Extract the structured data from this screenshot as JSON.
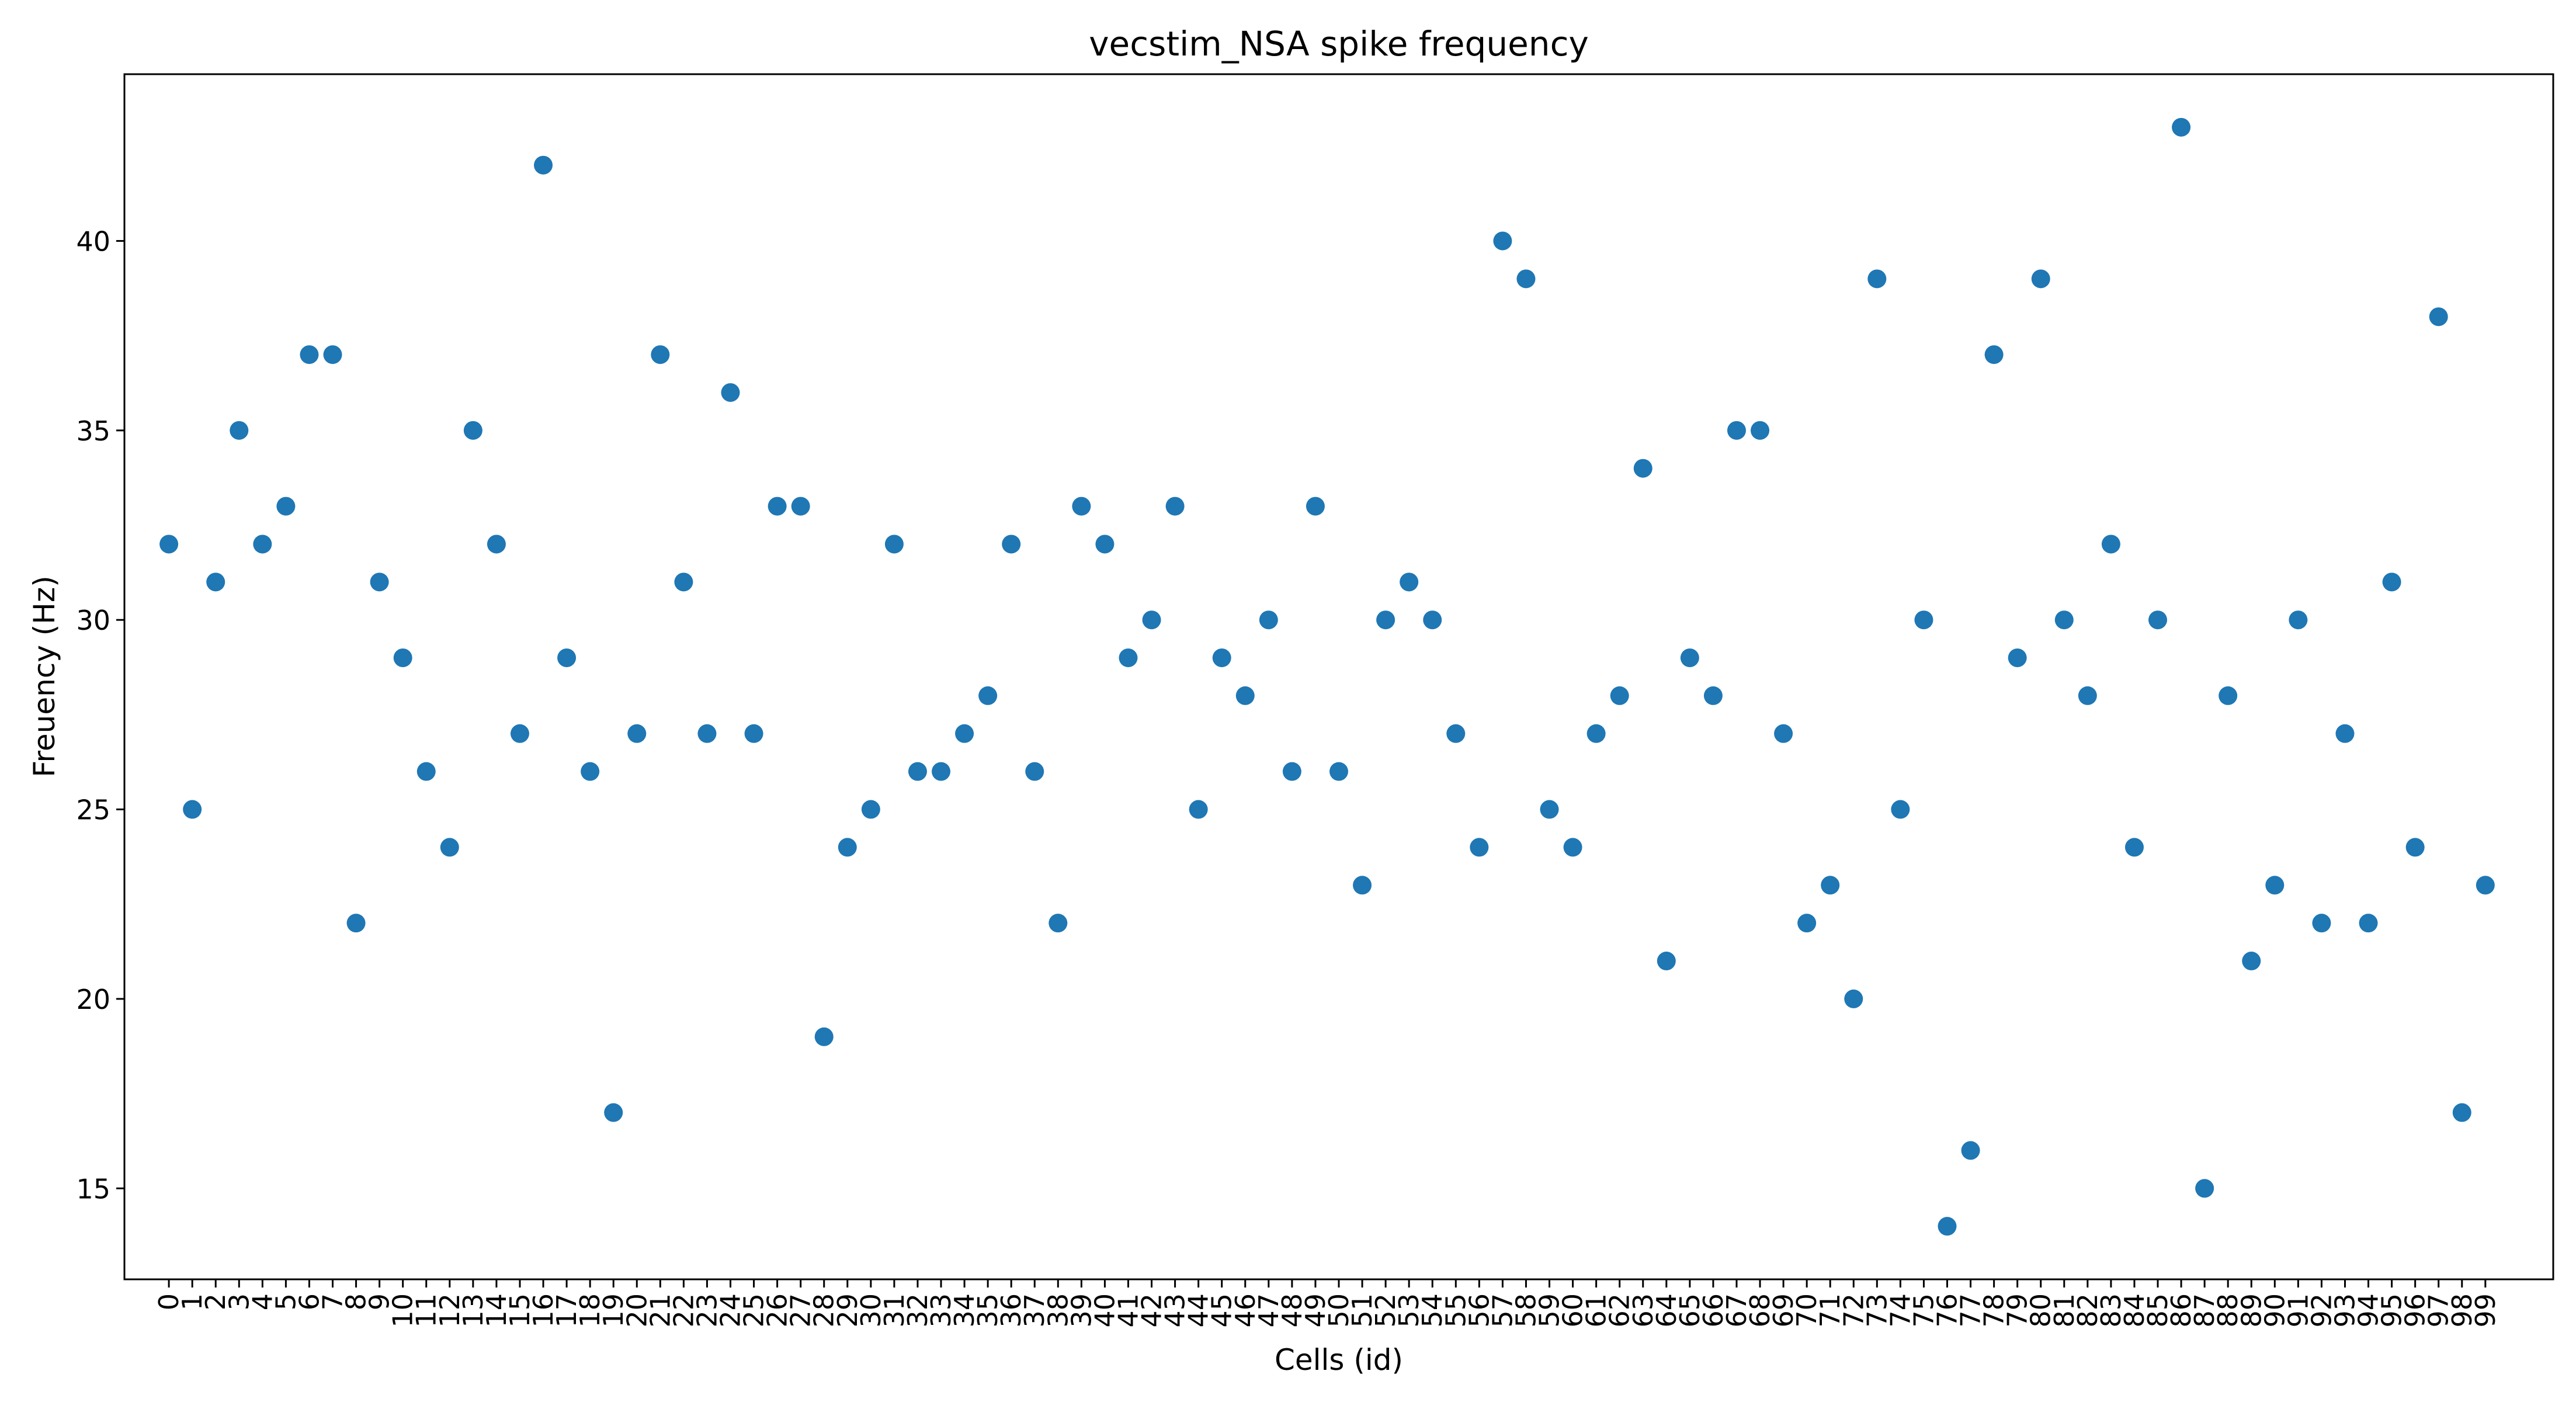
{
  "chart_data": {
    "type": "scatter",
    "title": "vecstim_NSA spike frequency",
    "xlabel": "Cells (id)",
    "ylabel": "Freuency (Hz)",
    "xlim": [
      -1.9,
      101.9
    ],
    "ylim": [
      12.6,
      44.4
    ],
    "yticks": [
      15,
      20,
      25,
      30,
      35,
      40
    ],
    "xticks": [
      0,
      1,
      2,
      3,
      4,
      5,
      6,
      7,
      8,
      9,
      10,
      11,
      12,
      13,
      14,
      15,
      16,
      17,
      18,
      19,
      20,
      21,
      22,
      23,
      24,
      25,
      26,
      27,
      28,
      29,
      30,
      31,
      32,
      33,
      34,
      35,
      36,
      37,
      38,
      39,
      40,
      41,
      42,
      43,
      44,
      45,
      46,
      47,
      48,
      49,
      50,
      51,
      52,
      53,
      54,
      55,
      56,
      57,
      58,
      59,
      60,
      61,
      62,
      63,
      64,
      65,
      66,
      67,
      68,
      69,
      70,
      71,
      72,
      73,
      74,
      75,
      76,
      77,
      78,
      79,
      80,
      81,
      82,
      83,
      84,
      85,
      86,
      87,
      88,
      89,
      90,
      91,
      92,
      93,
      94,
      95,
      96,
      97,
      98,
      99
    ],
    "grid": false,
    "marker_color": "#1f77b4",
    "x": [
      0,
      1,
      2,
      3,
      4,
      5,
      6,
      7,
      8,
      9,
      10,
      11,
      12,
      13,
      14,
      15,
      16,
      17,
      18,
      19,
      20,
      21,
      22,
      23,
      24,
      25,
      26,
      27,
      28,
      29,
      30,
      31,
      32,
      33,
      34,
      35,
      36,
      37,
      38,
      39,
      40,
      41,
      42,
      43,
      44,
      45,
      46,
      47,
      48,
      49,
      50,
      51,
      52,
      53,
      54,
      55,
      56,
      57,
      58,
      59,
      60,
      61,
      62,
      63,
      64,
      65,
      66,
      67,
      68,
      69,
      70,
      71,
      72,
      73,
      74,
      75,
      76,
      77,
      78,
      79,
      80,
      81,
      82,
      83,
      84,
      85,
      86,
      87,
      88,
      89,
      90,
      91,
      92,
      93,
      94,
      95,
      96,
      97,
      98,
      99
    ],
    "y": [
      32,
      25,
      31,
      35,
      32,
      33,
      37,
      37,
      22,
      31,
      29,
      26,
      24,
      35,
      32,
      27,
      42,
      29,
      26,
      17,
      27,
      37,
      31,
      27,
      36,
      27,
      33,
      33,
      19,
      24,
      25,
      32,
      26,
      26,
      27,
      28,
      32,
      26,
      22,
      33,
      32,
      29,
      30,
      33,
      25,
      29,
      28,
      30,
      26,
      33,
      26,
      23,
      30,
      31,
      30,
      27,
      24,
      40,
      39,
      25,
      24,
      27,
      28,
      34,
      21,
      29,
      28,
      35,
      35,
      27,
      22,
      23,
      20,
      39,
      25,
      30,
      14,
      16,
      37,
      29,
      39,
      30,
      28,
      32,
      24,
      30,
      43,
      15,
      28,
      21,
      23,
      30,
      22,
      27,
      22,
      31,
      24,
      38,
      17,
      23
    ]
  }
}
